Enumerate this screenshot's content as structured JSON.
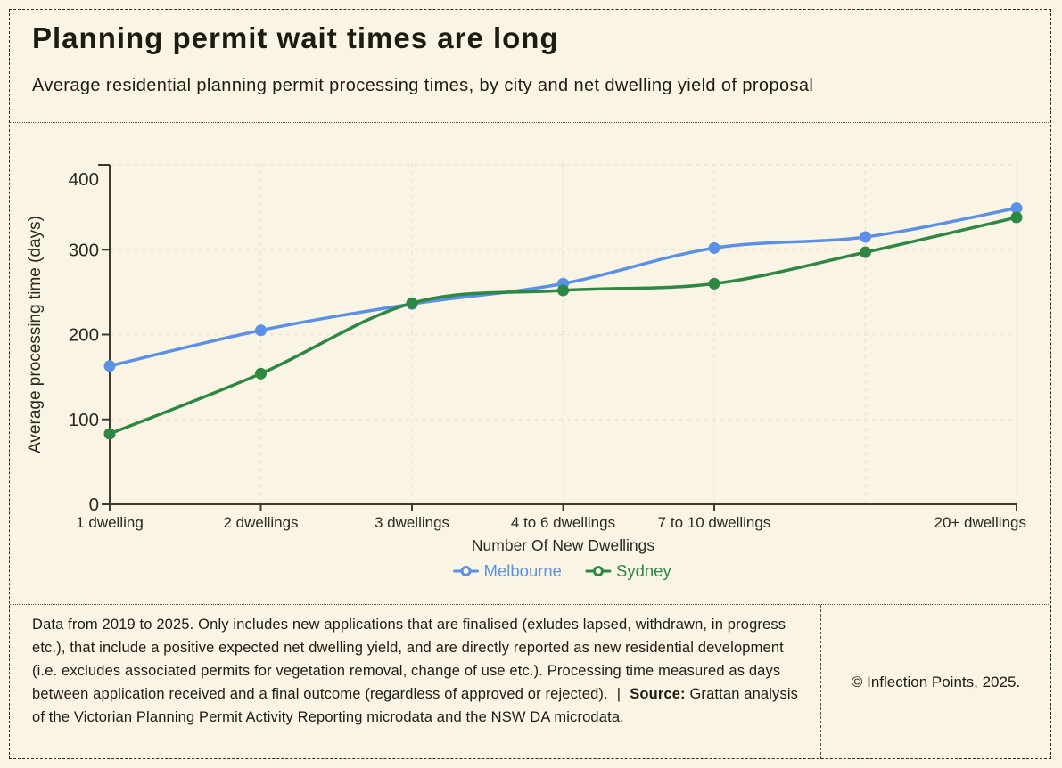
{
  "header": {
    "title": "Planning permit wait times are long",
    "subtitle": "Average residential planning permit processing times, by city and net dwelling yield of proposal"
  },
  "chart_data": {
    "type": "line",
    "categories": [
      "1 dwelling",
      "2 dwellings",
      "3 dwellings",
      "4 to 6 dwellings",
      "7 to 10 dwellings",
      "",
      "20+ dwellings"
    ],
    "series": [
      {
        "name": "Melbourne",
        "color": "#5B91E5",
        "values": [
          163,
          205,
          236,
          260,
          302,
          315,
          349
        ]
      },
      {
        "name": "Sydney",
        "color": "#2E8843",
        "values": [
          83,
          154,
          237,
          252,
          260,
          297,
          338
        ]
      }
    ],
    "xlabel": "Number Of New Dwellings",
    "ylabel": "Average processing time (days)",
    "yticks": [
      0,
      100,
      200,
      300,
      400
    ],
    "ylim": [
      0,
      400
    ],
    "grid": true,
    "legend_position": "bottom"
  },
  "footer": {
    "note": "Data from 2019 to 2025. Only includes new applications that are finalised (exludes lapsed, withdrawn, in progress etc.), that include a positive expected net dwelling yield, and are directly reported as new residential development (i.e. excludes associated permits for vegetation removal, change of use etc.). Processing time measured as days between application received and a final outcome (regardless of approved or rejected).",
    "separator": "|",
    "source_label": "Source:",
    "source_text": "Grattan analysis of the Victorian Planning Permit Activity Reporting microdata and the NSW DA microdata.",
    "copyright": "© Inflection Points, 2025."
  },
  "colors": {
    "background": "#FAF4E4",
    "text": "#1E1C11",
    "chart_text": "#2B2A20",
    "axis": "#3C3A2D",
    "grid": "#EBDFD4",
    "melbourne": "#5B91E5",
    "sydney": "#2E8843"
  }
}
